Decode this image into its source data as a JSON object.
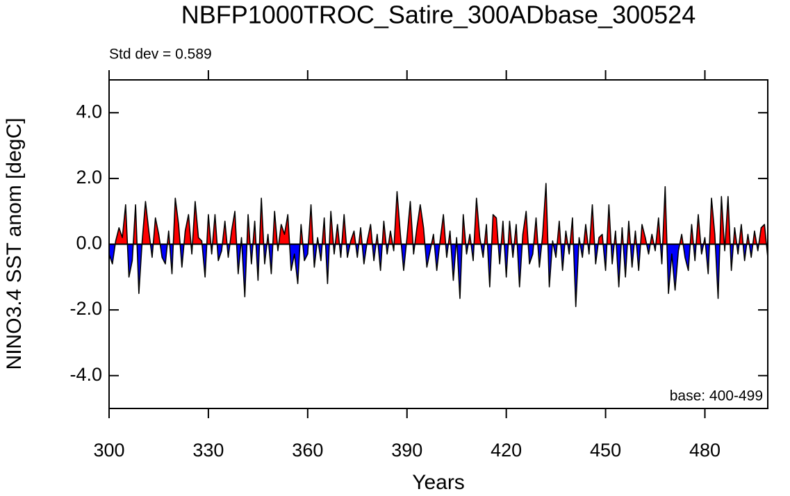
{
  "chart_data": {
    "type": "area-line",
    "title": "NBFP1000TROC_Satire_300ADbase_300524",
    "annotations": [
      "Std dev = 0.589",
      "base: 400-499"
    ],
    "xlabel": "Years",
    "ylabel": "NINO3.4 SST anom [degC]",
    "xlim": [
      300,
      499
    ],
    "ylim": [
      -5,
      5
    ],
    "xticks": [
      300,
      330,
      360,
      390,
      420,
      450,
      480
    ],
    "yticks": [
      {
        "value": -4,
        "label": "-4.0"
      },
      {
        "value": -2,
        "label": "-2.0"
      },
      {
        "value": 0,
        "label": "0.0"
      },
      {
        "value": 2,
        "label": "2.0"
      },
      {
        "value": 4,
        "label": "4.0"
      }
    ],
    "above_color": "#ff0000",
    "below_color": "#0000ff",
    "line_color": "#000000",
    "x": [
      300,
      301,
      302,
      303,
      304,
      305,
      306,
      307,
      308,
      309,
      310,
      311,
      312,
      313,
      314,
      315,
      316,
      317,
      318,
      319,
      320,
      321,
      322,
      323,
      324,
      325,
      326,
      327,
      328,
      329,
      330,
      331,
      332,
      333,
      334,
      335,
      336,
      337,
      338,
      339,
      340,
      341,
      342,
      343,
      344,
      345,
      346,
      347,
      348,
      349,
      350,
      351,
      352,
      353,
      354,
      355,
      356,
      357,
      358,
      359,
      360,
      361,
      362,
      363,
      364,
      365,
      366,
      367,
      368,
      369,
      370,
      371,
      372,
      373,
      374,
      375,
      376,
      377,
      378,
      379,
      380,
      381,
      382,
      383,
      384,
      385,
      386,
      387,
      388,
      389,
      390,
      391,
      392,
      393,
      394,
      395,
      396,
      397,
      398,
      399,
      400,
      401,
      402,
      403,
      404,
      405,
      406,
      407,
      408,
      409,
      410,
      411,
      412,
      413,
      414,
      415,
      416,
      417,
      418,
      419,
      420,
      421,
      422,
      423,
      424,
      425,
      426,
      427,
      428,
      429,
      430,
      431,
      432,
      433,
      434,
      435,
      436,
      437,
      438,
      439,
      440,
      441,
      442,
      443,
      444,
      445,
      446,
      447,
      448,
      449,
      450,
      451,
      452,
      453,
      454,
      455,
      456,
      457,
      458,
      459,
      460,
      461,
      462,
      463,
      464,
      465,
      466,
      467,
      468,
      469,
      470,
      471,
      472,
      473,
      474,
      475,
      476,
      477,
      478,
      479,
      480,
      481,
      482,
      483,
      484,
      485,
      486,
      487,
      488,
      489,
      490,
      491,
      492,
      493,
      494,
      495,
      496,
      497,
      498,
      499
    ],
    "values": [
      -0.3,
      -0.6,
      0.1,
      0.5,
      0.2,
      1.2,
      -1.0,
      -0.5,
      1.2,
      -1.5,
      0.1,
      1.3,
      0.4,
      -0.4,
      0.8,
      0.3,
      -0.4,
      -0.6,
      0.4,
      -0.9,
      1.4,
      0.6,
      -0.7,
      0.4,
      0.9,
      -0.3,
      1.3,
      0.2,
      0.1,
      -1.0,
      0.9,
      -0.3,
      0.9,
      -0.5,
      -0.2,
      0.7,
      -0.4,
      0.4,
      1.0,
      -0.9,
      0.2,
      -1.6,
      0.9,
      -0.6,
      0.7,
      -1.1,
      1.4,
      -0.6,
      0.3,
      -0.9,
      1.0,
      -0.2,
      0.6,
      0.3,
      0.9,
      -0.8,
      -0.3,
      -1.2,
      0.6,
      -0.5,
      -0.3,
      1.2,
      -0.7,
      0.2,
      -0.5,
      0.8,
      -1.2,
      1.0,
      -0.3,
      0.6,
      -0.4,
      0.9,
      -0.4,
      0.1,
      0.4,
      -0.4,
      0.5,
      -0.6,
      0.1,
      0.6,
      -0.5,
      0.3,
      -0.8,
      0.7,
      -0.3,
      0.4,
      -0.2,
      1.6,
      0.3,
      -0.8,
      0.2,
      1.3,
      -0.3,
      0.5,
      1.2,
      0.5,
      -0.7,
      -0.2,
      0.3,
      -0.8,
      0.1,
      0.9,
      -0.4,
      0.4,
      -1.1,
      0.2,
      -1.65,
      0.9,
      -0.3,
      0.3,
      -0.5,
      1.4,
      0.2,
      -0.4,
      0.6,
      -1.3,
      0.9,
      0.8,
      -0.6,
      0.7,
      -1.0,
      0.7,
      -0.4,
      0.6,
      -1.3,
      0.3,
      1.0,
      -0.6,
      -0.3,
      0.8,
      -0.7,
      0.3,
      1.85,
      -1.3,
      0.1,
      -0.4,
      0.7,
      -0.8,
      0.4,
      -0.3,
      0.8,
      -1.9,
      0.2,
      -0.4,
      0.6,
      -0.3,
      1.2,
      -0.6,
      0.2,
      0.3,
      -0.8,
      1.2,
      -0.6,
      0.4,
      -1.3,
      0.5,
      -1.0,
      0.7,
      -0.7,
      0.4,
      -0.8,
      0.6,
      0.2,
      -0.3,
      0.3,
      -0.2,
      0.8,
      -0.6,
      1.75,
      -1.5,
      -0.3,
      -1.4,
      -0.2,
      0.3,
      -0.4,
      -0.8,
      0.6,
      -0.5,
      0.9,
      -0.3,
      0.2,
      -0.9,
      1.4,
      0.3,
      -1.65,
      1.45,
      -0.2,
      1.45,
      -0.8,
      0.5,
      -0.3,
      0.6,
      -0.5,
      0.3,
      -0.4,
      0.4,
      -0.2,
      0.5,
      0.6,
      -0.4
    ]
  }
}
